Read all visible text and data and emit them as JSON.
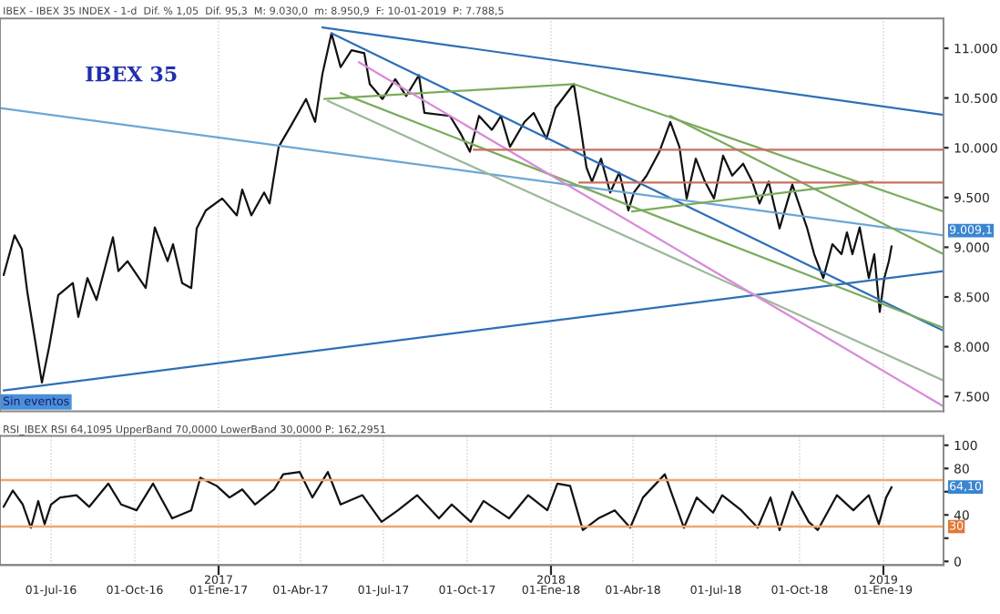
{
  "chart_data": [
    {
      "type": "line",
      "title": "IBEX 35",
      "subtitle": "IBEX - IBEX 35 INDEX - 1-d  Dif. % 1,05  Dif. 95,3  M: 9.030,0  m: 8.950,9  F: 10-01-2019  P: 7.788,5",
      "annotations": [
        "Sin eventos",
        "9.009,1"
      ],
      "xlim": [
        "2016-05-06",
        "2019-03-08"
      ],
      "ylim": [
        7350,
        11300
      ],
      "xticks": [
        {
          "value": "2017-01-01",
          "label": null
        },
        {
          "value": "2018-01-01",
          "label": null
        },
        {
          "value": "2019-01-01",
          "label": null
        }
      ],
      "yticks": [
        {
          "value": 7500,
          "label": "7.500"
        },
        {
          "value": 8000,
          "label": "8.000"
        },
        {
          "value": 8500,
          "label": "8.500"
        },
        {
          "value": 9000,
          "label": "9.000"
        },
        {
          "value": 9500,
          "label": "9.500"
        },
        {
          "value": 10000,
          "label": "10.000"
        },
        {
          "value": 10500,
          "label": "10.500"
        },
        {
          "value": 11000,
          "label": "11.000"
        }
      ],
      "tick_labels": "y",
      "grid": "x",
      "legend": false,
      "series": [
        {
          "color": "#111111",
          "x": [
            "2016-05-10",
            "2016-05-22",
            "2016-05-30",
            "2016-06-05",
            "2016-06-21",
            "2016-06-29",
            "2016-07-09",
            "2016-07-25",
            "2016-07-31",
            "2016-08-10",
            "2016-08-20",
            "2016-09-07",
            "2016-09-13",
            "2016-09-23",
            "2016-10-13",
            "2016-10-23",
            "2016-11-06",
            "2016-11-12",
            "2016-11-22",
            "2016-12-02",
            "2016-12-08",
            "2016-12-18",
            "2017-01-05",
            "2017-01-21",
            "2017-01-27",
            "2017-02-06",
            "2017-02-20",
            "2017-02-26",
            "2017-03-08",
            "2017-03-22",
            "2017-04-07",
            "2017-04-17",
            "2017-04-25",
            "2017-05-05",
            "2017-05-15",
            "2017-05-27",
            "2017-06-10",
            "2017-06-16",
            "2017-06-30",
            "2017-07-14",
            "2017-07-26",
            "2017-08-09",
            "2017-08-15",
            "2017-09-12",
            "2017-09-24",
            "2017-10-04",
            "2017-10-14",
            "2017-10-28",
            "2017-11-03",
            "2017-11-07",
            "2017-11-17",
            "2017-12-03",
            "2017-12-13",
            "2017-12-27",
            "2018-01-06",
            "2018-01-26",
            "2018-02-01",
            "2018-02-09",
            "2018-02-15",
            "2018-02-25",
            "2018-03-07",
            "2018-03-17",
            "2018-03-27",
            "2018-04-02",
            "2018-04-16",
            "2018-04-30",
            "2018-05-12",
            "2018-05-22",
            "2018-05-30",
            "2018-06-09",
            "2018-06-19",
            "2018-06-29",
            "2018-07-09",
            "2018-07-19",
            "2018-07-31",
            "2018-08-10",
            "2018-08-18",
            "2018-08-28",
            "2018-09-09",
            "2018-09-23",
            "2018-10-09",
            "2018-10-17",
            "2018-10-27",
            "2018-11-06",
            "2018-11-16",
            "2018-11-22",
            "2018-11-28",
            "2018-12-06",
            "2018-12-16",
            "2018-12-22",
            "2018-12-28",
            "2019-01-02",
            "2019-01-07",
            "2019-01-10"
          ],
          "values": [
            8720,
            9120,
            8980,
            8550,
            7640,
            8000,
            8520,
            8640,
            8300,
            8690,
            8470,
            9100,
            8760,
            8860,
            8590,
            9200,
            8860,
            9030,
            8640,
            8590,
            9190,
            9370,
            9490,
            9320,
            9580,
            9320,
            9550,
            9440,
            10010,
            10230,
            10490,
            10260,
            10740,
            11150,
            10810,
            10980,
            10950,
            10640,
            10490,
            10690,
            10520,
            10730,
            10350,
            10320,
            10140,
            9960,
            10320,
            10180,
            10260,
            10320,
            10010,
            10260,
            10350,
            10090,
            10400,
            10640,
            10300,
            9800,
            9660,
            9890,
            9550,
            9750,
            9370,
            9550,
            9720,
            9960,
            10260,
            10010,
            9490,
            9890,
            9660,
            9490,
            9920,
            9720,
            9840,
            9660,
            9440,
            9660,
            9190,
            9630,
            9200,
            8930,
            8690,
            9030,
            8930,
            9150,
            8930,
            9200,
            8690,
            8930,
            8350,
            8690,
            8860,
            9010
          ]
        },
        {
          "color": "#2e6fb7",
          "x": [
            "2017-04-25",
            "2019-03-08"
          ],
          "values": [
            11210,
            10330
          ]
        },
        {
          "color": "#2e6fb7",
          "x": [
            "2016-05-10",
            "2019-03-08"
          ],
          "values": [
            7560,
            8760
          ]
        },
        {
          "color": "#2e6fb7",
          "x": [
            "2017-05-05",
            "2019-03-08"
          ],
          "values": [
            11150,
            8160
          ]
        },
        {
          "color": "#6aa7d6",
          "x": [
            "2016-05-06",
            "2019-03-08"
          ],
          "values": [
            10400,
            9120
          ]
        },
        {
          "color": "#7cab5c",
          "x": [
            "2017-04-27",
            "2018-01-26",
            "2019-03-08"
          ],
          "values": [
            10490,
            10640,
            9360
          ]
        },
        {
          "color": "#7cab5c",
          "x": [
            "2018-05-12",
            "2019-03-08"
          ],
          "values": [
            10320,
            8930
          ]
        },
        {
          "color": "#7cab5c",
          "x": [
            "2018-03-31",
            "2018-12-20"
          ],
          "values": [
            9360,
            9660
          ]
        },
        {
          "color": "#7cab5c",
          "x": [
            "2017-05-15",
            "2019-03-08"
          ],
          "values": [
            10550,
            8190
          ]
        },
        {
          "color": "#9bb89a",
          "x": [
            "2017-05-01",
            "2019-03-08"
          ],
          "values": [
            10470,
            7660
          ]
        },
        {
          "color": "#d98ad9",
          "x": [
            "2017-06-04",
            "2019-03-08"
          ],
          "values": [
            10860,
            7400
          ]
        },
        {
          "color": "#c87060",
          "x": [
            "2017-10-08",
            "2019-03-08"
          ],
          "values": [
            9980,
            9980
          ]
        },
        {
          "color": "#c87060",
          "x": [
            "2018-02-01",
            "2019-03-08"
          ],
          "values": [
            9650,
            9650
          ]
        }
      ]
    },
    {
      "type": "line",
      "subtitle": "RSI_IBEX RSI 64,1095 UpperBand 70,0000 LowerBand 30,0000 P: 162,2951",
      "annotations": [
        "64,10",
        "30"
      ],
      "xlim": [
        "2016-05-06",
        "2019-03-08"
      ],
      "ylim": [
        -3,
        108
      ],
      "xticks": [
        {
          "value": "2016-07-01",
          "label": "01-Jul-16"
        },
        {
          "value": "2016-10-01",
          "label": "01-Oct-16"
        },
        {
          "value": "2017-01-01",
          "label": "01-Ene-17"
        },
        {
          "value": "2017-04-01",
          "label": "01-Abr-17"
        },
        {
          "value": "2017-07-01",
          "label": "01-Jul-17"
        },
        {
          "value": "2017-10-01",
          "label": "01-Oct-17"
        },
        {
          "value": "2018-01-01",
          "label": "01-Ene-18"
        },
        {
          "value": "2018-04-01",
          "label": "01-Abr-18"
        },
        {
          "value": "2018-07-01",
          "label": "01-Jul-18"
        },
        {
          "value": "2018-10-01",
          "label": "01-Oct-18"
        },
        {
          "value": "2019-01-01",
          "label": "01-Ene-19"
        }
      ],
      "x2lim": [
        "2016-05-06",
        "2019-03-08"
      ],
      "x2ticks": [
        {
          "value": "2017-01-01",
          "label": "2017"
        },
        {
          "value": "2018-01-01",
          "label": "2018"
        },
        {
          "value": "2019-01-01",
          "label": "2019"
        }
      ],
      "yticks": [
        0,
        {
          "value": 20,
          "label": null
        },
        40,
        {
          "value": 60,
          "label": null
        },
        80,
        100
      ],
      "grid": "x",
      "legend": false,
      "ref_lines": [
        {
          "axis": "y",
          "value": 70,
          "color": "#f0a870"
        },
        {
          "axis": "y",
          "value": 30,
          "color": "#f0a870"
        }
      ],
      "series": [
        {
          "color": "#111111",
          "x": [
            "2016-05-10",
            "2016-05-20",
            "2016-05-31",
            "2016-06-09",
            "2016-06-17",
            "2016-06-24",
            "2016-07-01",
            "2016-07-11",
            "2016-07-29",
            "2016-08-12",
            "2016-09-02",
            "2016-09-16",
            "2016-10-03",
            "2016-10-21",
            "2016-11-04",
            "2016-11-11",
            "2016-12-02",
            "2016-12-12",
            "2016-12-30",
            "2017-01-13",
            "2017-01-27",
            "2017-02-10",
            "2017-03-03",
            "2017-03-13",
            "2017-03-31",
            "2017-04-14",
            "2017-05-01",
            "2017-05-15",
            "2017-06-08",
            "2017-06-29",
            "2017-07-17",
            "2017-08-07",
            "2017-08-31",
            "2017-09-14",
            "2017-10-05",
            "2017-10-19",
            "2017-11-16",
            "2017-12-07",
            "2017-12-28",
            "2018-01-08",
            "2018-01-22",
            "2018-02-05",
            "2018-02-22",
            "2018-03-12",
            "2018-03-29",
            "2018-04-12",
            "2018-05-06",
            "2018-05-27",
            "2018-06-10",
            "2018-06-28",
            "2018-07-08",
            "2018-07-29",
            "2018-08-16",
            "2018-08-30",
            "2018-09-09",
            "2018-09-23",
            "2018-10-11",
            "2018-10-21",
            "2018-11-11",
            "2018-11-29",
            "2018-12-16",
            "2018-12-27",
            "2019-01-04",
            "2019-01-10"
          ],
          "values": [
            47,
            61,
            49,
            29,
            52,
            32,
            49,
            55,
            57,
            47,
            67,
            49,
            44,
            67,
            47,
            37,
            44,
            72,
            65,
            55,
            62,
            49,
            62,
            75,
            77,
            55,
            77,
            49,
            57,
            34,
            44,
            57,
            37,
            49,
            34,
            52,
            37,
            57,
            44,
            67,
            65,
            27,
            37,
            44,
            29,
            55,
            75,
            29,
            55,
            42,
            57,
            44,
            29,
            55,
            27,
            60,
            34,
            27,
            57,
            44,
            57,
            32,
            55,
            64
          ]
        }
      ]
    }
  ]
}
